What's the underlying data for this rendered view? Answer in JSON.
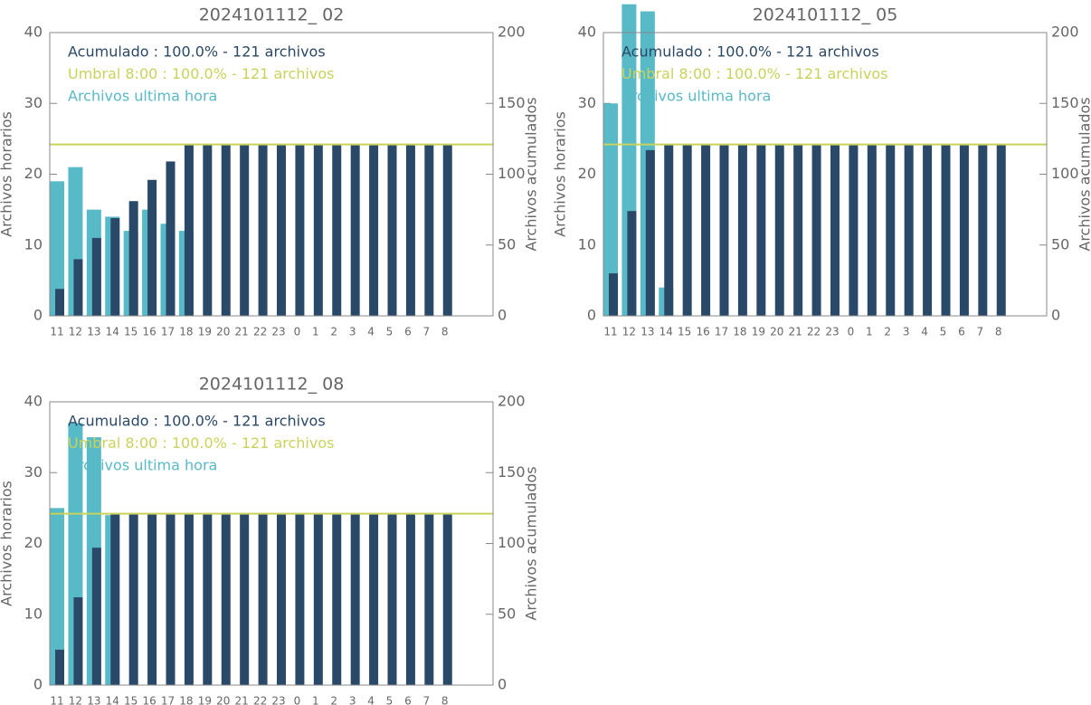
{
  "chart_data": [
    {
      "type": "bar",
      "title": "2024101112_ 02",
      "categories": [
        "11",
        "12",
        "13",
        "14",
        "15",
        "16",
        "17",
        "18",
        "19",
        "20",
        "21",
        "22",
        "23",
        "0",
        "1",
        "2",
        "3",
        "4",
        "5",
        "6",
        "7",
        "8"
      ],
      "ylabel": "Archivos horarios",
      "y2label": "Archivos acumulados",
      "ylim": [
        0,
        40
      ],
      "yticks": [
        0,
        10,
        20,
        30,
        40
      ],
      "y2lim": [
        0,
        200
      ],
      "y2ticks": [
        0,
        50,
        100,
        150,
        200
      ],
      "series": [
        {
          "name": "Acumulado : 100.0% - 121 archivos",
          "color": "#2a4868",
          "axis": "y2",
          "values": [
            19,
            40,
            55,
            69,
            81,
            96,
            109,
            121,
            121,
            121,
            121,
            121,
            121,
            121,
            121,
            121,
            121,
            121,
            121,
            121,
            121,
            121
          ]
        },
        {
          "name": "Archivos ultima hora",
          "color": "#58b9c7",
          "axis": "y",
          "values": [
            19,
            21,
            15,
            14,
            12,
            15,
            13,
            12,
            0,
            0,
            0,
            0,
            0,
            0,
            0,
            0,
            0,
            0,
            0,
            0,
            0,
            0
          ]
        }
      ],
      "threshold": {
        "name": "Umbral 8:00 : 100.0% - 121 archivos",
        "value": 121,
        "axis": "y2",
        "color": "#c8d35c"
      }
    },
    {
      "type": "bar",
      "title": "2024101112_ 05",
      "categories": [
        "11",
        "12",
        "13",
        "14",
        "15",
        "16",
        "17",
        "18",
        "19",
        "20",
        "21",
        "22",
        "23",
        "0",
        "1",
        "2",
        "3",
        "4",
        "5",
        "6",
        "7",
        "8"
      ],
      "ylabel": "Archivos horarios",
      "y2label": "Archivos acumulados",
      "ylim": [
        0,
        40
      ],
      "yticks": [
        0,
        10,
        20,
        30,
        40
      ],
      "y2lim": [
        0,
        200
      ],
      "y2ticks": [
        0,
        50,
        100,
        150,
        200
      ],
      "series": [
        {
          "name": "Acumulado : 100.0% - 121 archivos",
          "color": "#2a4868",
          "axis": "y2",
          "values": [
            30,
            74,
            117,
            121,
            121,
            121,
            121,
            121,
            121,
            121,
            121,
            121,
            121,
            121,
            121,
            121,
            121,
            121,
            121,
            121,
            121,
            121
          ]
        },
        {
          "name": "Archivos ultima hora",
          "color": "#58b9c7",
          "axis": "y",
          "values": [
            30,
            44,
            43,
            4,
            0,
            0,
            0,
            0,
            0,
            0,
            0,
            0,
            0,
            0,
            0,
            0,
            0,
            0,
            0,
            0,
            0,
            0
          ]
        }
      ],
      "threshold": {
        "name": "Umbral 8:00 : 100.0% - 121 archivos",
        "value": 121,
        "axis": "y2",
        "color": "#c8d35c"
      }
    },
    {
      "type": "bar",
      "title": "2024101112_ 08",
      "categories": [
        "11",
        "12",
        "13",
        "14",
        "15",
        "16",
        "17",
        "18",
        "19",
        "20",
        "21",
        "22",
        "23",
        "0",
        "1",
        "2",
        "3",
        "4",
        "5",
        "6",
        "7",
        "8"
      ],
      "ylabel": "Archivos horarios",
      "y2label": "Archivos acumulados",
      "ylim": [
        0,
        40
      ],
      "yticks": [
        0,
        10,
        20,
        30,
        40
      ],
      "y2lim": [
        0,
        200
      ],
      "y2ticks": [
        0,
        50,
        100,
        150,
        200
      ],
      "series": [
        {
          "name": "Acumulado : 100.0% - 121 archivos",
          "color": "#2a4868",
          "axis": "y2",
          "values": [
            25,
            62,
            97,
            121,
            121,
            121,
            121,
            121,
            121,
            121,
            121,
            121,
            121,
            121,
            121,
            121,
            121,
            121,
            121,
            121,
            121,
            121
          ]
        },
        {
          "name": "Archivos ultima hora",
          "color": "#58b9c7",
          "axis": "y",
          "values": [
            25,
            37,
            35,
            24,
            0,
            0,
            0,
            0,
            0,
            0,
            0,
            0,
            0,
            0,
            0,
            0,
            0,
            0,
            0,
            0,
            0,
            0
          ]
        }
      ],
      "threshold": {
        "name": "Umbral 8:00 : 100.0% - 121 archivos",
        "value": 121,
        "axis": "y2",
        "color": "#c8d35c"
      }
    }
  ]
}
